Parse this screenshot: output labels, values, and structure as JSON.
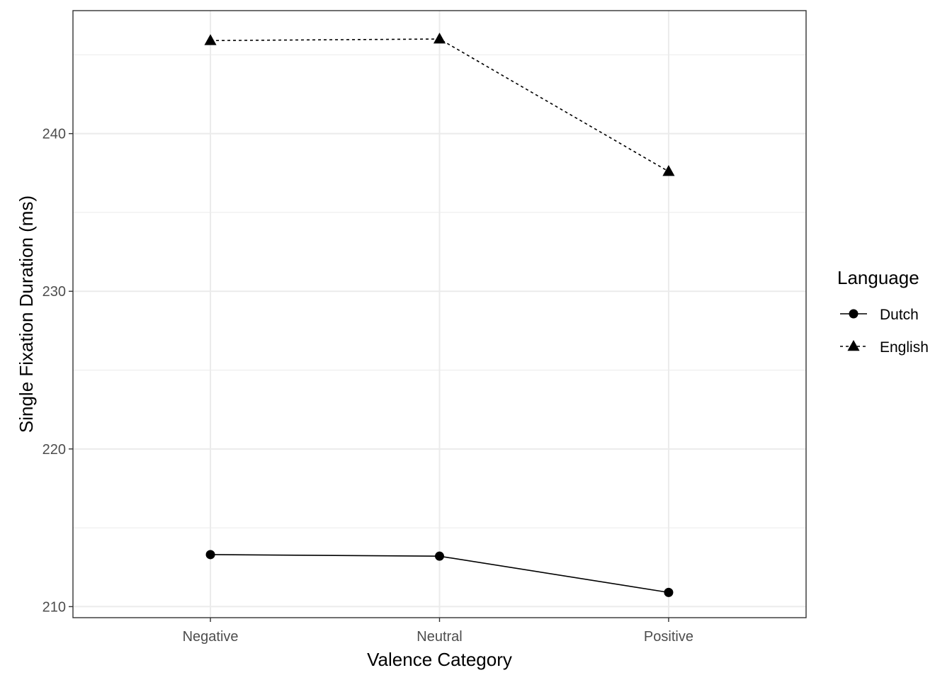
{
  "chart_data": {
    "type": "line",
    "categories": [
      "Negative",
      "Neutral",
      "Positive"
    ],
    "series": [
      {
        "name": "Dutch",
        "values": [
          213.3,
          213.2,
          210.9
        ],
        "marker": "circle",
        "line_style": "solid",
        "color": "#000000"
      },
      {
        "name": "English",
        "values": [
          245.9,
          246.0,
          237.6
        ],
        "marker": "triangle",
        "line_style": "dashed",
        "color": "#000000"
      }
    ],
    "xlabel": "Valence Category",
    "ylabel": "Single Fixation Duration (ms)",
    "ylim": [
      209.3,
      247.8
    ],
    "yticks": [
      210,
      220,
      230,
      240
    ],
    "ytick_labels": [
      "210",
      "220",
      "230",
      "240"
    ],
    "legend_title": "Language",
    "legend_position": "right",
    "grid": true,
    "colors": {
      "grid": "#ebebeb",
      "panel_border": "#333333",
      "tick_text": "#4d4d4d"
    }
  }
}
